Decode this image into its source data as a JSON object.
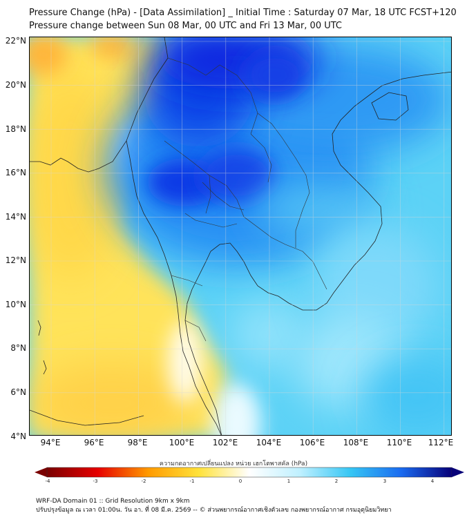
{
  "header": {
    "title": "Pressure Change (hPa) - [Data Assimilation] _ Initial Time : Saturday 07 Mar, 18 UTC FCST+120",
    "subtitle": "Pressure change between Sun 08 Mar, 00 UTC and Fri 13 Mar, 00 UTC"
  },
  "map": {
    "lat_labels": [
      "22°N",
      "20°N",
      "18°N",
      "16°N",
      "14°N",
      "12°N",
      "10°N",
      "8°N",
      "6°N",
      "4°N"
    ],
    "lon_labels": [
      "94°E",
      "96°E",
      "98°E",
      "100°E",
      "102°E",
      "104°E",
      "106°E",
      "108°E",
      "110°E",
      "112°E"
    ]
  },
  "colorbar": {
    "title": "ความกดอากาศเปลี่ยนแปลง หน่วย เฮกโตพาสคัล (hPa)",
    "tick_labels": [
      "-4",
      "-3",
      "-2",
      "-1",
      "0",
      "1",
      "2",
      "3",
      "4"
    ],
    "colors": {
      "neg4": "#7a0000",
      "neg3": "#e60000",
      "neg2": "#ff9a00",
      "neg1": "#ffe23a",
      "zero": "#ffffff",
      "pos1": "#bff0ff",
      "pos2": "#36c6f4",
      "pos3": "#1a6bf0",
      "pos4": "#070078"
    }
  },
  "footer": {
    "line1": "WRF-DA Domain 01 :: Grid Resolution 9km x 9km",
    "line2": "ปรับปรุงข้อมูล ณ เวลา 01:00น. วัน อา. ที่ 08 มี.ค. 2569 -- © ส่วนพยากรณ์อากาศเชิงตัวเลข กองพยากรณ์อากาศ กรมอุตุนิยมวิทยา"
  }
}
